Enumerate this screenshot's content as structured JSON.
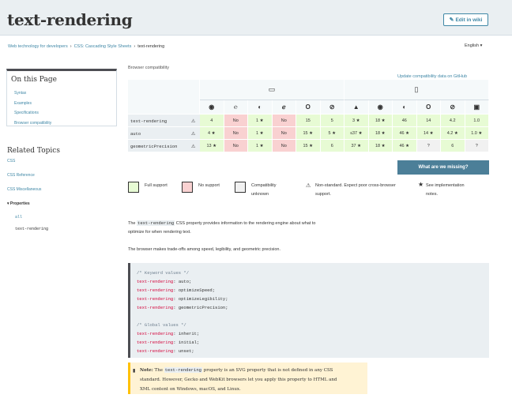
{
  "header": {
    "title": "text-rendering",
    "edit_label": "Edit in wiki"
  },
  "breadcrumbs": [
    "Web technology for developers",
    "CSS: Cascading Style Sheets",
    "text-rendering"
  ],
  "language": "English ▾",
  "toc": {
    "heading": "On this Page",
    "items": [
      "Syntax",
      "Examples",
      "Specifications",
      "Browser compatibility"
    ]
  },
  "related": {
    "heading": "Related Topics",
    "links": [
      "CSS",
      "CSS Reference",
      "CSS Miscellaneous"
    ],
    "properties_label": "▾  Properties",
    "props": [
      "all",
      "text-rendering"
    ]
  },
  "compat": {
    "title": "Browser compatibility",
    "update_link": "Update compatibility data on GitHub",
    "missing_label": "What are we missing?",
    "rows": [
      {
        "feature": "text-rendering",
        "cells": [
          {
            "v": "4",
            "s": "full"
          },
          {
            "v": "No",
            "s": "no"
          },
          {
            "v": "1 ★",
            "s": "full"
          },
          {
            "v": "No",
            "s": "no"
          },
          {
            "v": "15",
            "s": "full"
          },
          {
            "v": "5",
            "s": "full"
          },
          {
            "v": "3 ★",
            "s": "full"
          },
          {
            "v": "18 ★",
            "s": "full"
          },
          {
            "v": "46",
            "s": "full"
          },
          {
            "v": "14",
            "s": "full"
          },
          {
            "v": "4.2",
            "s": "full"
          },
          {
            "v": "1.0",
            "s": "full"
          }
        ]
      },
      {
        "feature": "auto",
        "cells": [
          {
            "v": "4 ★",
            "s": "full"
          },
          {
            "v": "No",
            "s": "no"
          },
          {
            "v": "1 ★",
            "s": "full"
          },
          {
            "v": "No",
            "s": "no"
          },
          {
            "v": "15 ★",
            "s": "full"
          },
          {
            "v": "5 ★",
            "s": "full"
          },
          {
            "v": "≤37 ★",
            "s": "full"
          },
          {
            "v": "18 ★",
            "s": "full"
          },
          {
            "v": "46 ★",
            "s": "full"
          },
          {
            "v": "14 ★",
            "s": "full"
          },
          {
            "v": "4.2 ★",
            "s": "full"
          },
          {
            "v": "1.0 ★",
            "s": "full"
          }
        ]
      },
      {
        "feature": "geometricPrecision",
        "cells": [
          {
            "v": "13 ★",
            "s": "full"
          },
          {
            "v": "No",
            "s": "no"
          },
          {
            "v": "1 ★",
            "s": "full"
          },
          {
            "v": "No",
            "s": "no"
          },
          {
            "v": "15 ★",
            "s": "full"
          },
          {
            "v": "6",
            "s": "full"
          },
          {
            "v": "37 ★",
            "s": "full"
          },
          {
            "v": "18 ★",
            "s": "full"
          },
          {
            "v": "46 ★",
            "s": "full"
          },
          {
            "v": "?",
            "s": "unk"
          },
          {
            "v": "6",
            "s": "full"
          },
          {
            "v": "?",
            "s": "unk"
          }
        ]
      }
    ],
    "browser_icons": [
      "◉",
      "℮",
      "◐",
      "ℯ",
      "O",
      "⊘",
      "▲",
      "◉",
      "◐",
      "O",
      "⊘",
      "▣"
    ],
    "legend": {
      "full": "Full support",
      "no": "No support",
      "unknown": "Compatibility unknown",
      "nonstandard": "Non-standard. Expect poor cross-browser support.",
      "notes": "See implementation notes."
    }
  },
  "body": {
    "p1_a": "The ",
    "p1_code": "text-rendering",
    "p1_b": " CSS property provides information to the rendering engine about what to",
    "p1_c": "optimize for when rendering text.",
    "p2": "The browser makes trade-offs among speed, legibility, and geometric precision."
  },
  "code": {
    "c1": "/* Keyword values */",
    "lines1": [
      [
        "text-rendering",
        "auto"
      ],
      [
        "text-rendering",
        "optimizeSpeed"
      ],
      [
        "text-rendering",
        "optimizeLegibility"
      ],
      [
        "text-rendering",
        "geometricPrecision"
      ]
    ],
    "c2": "/* Global values */",
    "lines2": [
      [
        "text-rendering",
        "inherit"
      ],
      [
        "text-rendering",
        "initial"
      ],
      [
        "text-rendering",
        "unset"
      ]
    ]
  },
  "note": {
    "label": "Note:",
    "a": " The ",
    "code": "text-rendering",
    "b": " property is an SVG property that is not defined in any CSS",
    "line2": "standard. However, Gecko and WebKit browsers let you apply this property to HTML and",
    "line3": "XML content on Windows, macOS, and Linux."
  }
}
